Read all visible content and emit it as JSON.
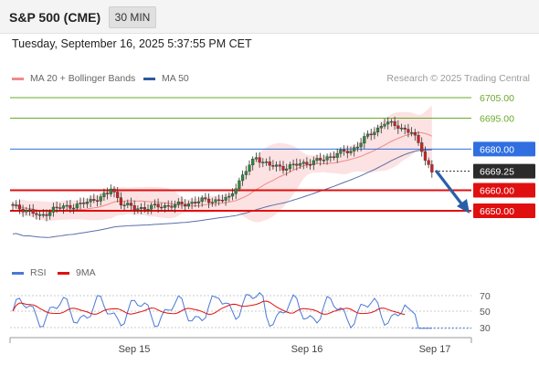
{
  "header": {
    "instrument": "S&P 500 (CME)",
    "timeframe": "30 MIN"
  },
  "timestamp": "Tuesday, September 16, 2025 5:37:55 PM CET",
  "legend": {
    "ma20": "MA 20 + Bollinger Bands",
    "ma50": "MA 50",
    "ma20_color": "#f08a8a",
    "ma50_color": "#2e5a9e"
  },
  "credit": "Research © 2025 Trading Central",
  "price_levels": [
    {
      "label": "6705.00",
      "value": 6705,
      "kind": "target",
      "color": "#6aaa2a"
    },
    {
      "label": "6695.00",
      "value": 6695,
      "kind": "target",
      "color": "#6aaa2a"
    },
    {
      "label": "6680.00",
      "value": 6680,
      "kind": "pivot",
      "color": "#2f6fe0"
    },
    {
      "label": "6669.25",
      "value": 6669.25,
      "kind": "last",
      "color": "#2b2b2b"
    },
    {
      "label": "6660.00",
      "value": 6660,
      "kind": "support",
      "color": "#e01010"
    },
    {
      "label": "6650.00",
      "value": 6650,
      "kind": "support",
      "color": "#e01010"
    }
  ],
  "rsi_panel": {
    "legend": {
      "rsi": "RSI",
      "ma": "9MA",
      "rsi_color": "#4a78d6",
      "ma_color": "#e01010"
    },
    "levels": [
      "70",
      "50",
      "30"
    ]
  },
  "x_axis": {
    "labels": [
      "Sep 15",
      "Sep 16",
      "Sep 17"
    ]
  }
}
